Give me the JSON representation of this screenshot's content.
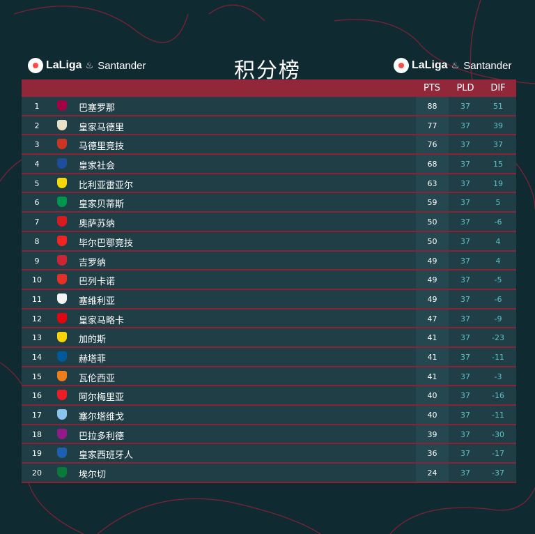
{
  "logos": {
    "left": {
      "brand": "LaLiga",
      "sponsor": "Santander"
    },
    "right": {
      "brand": "LaLiga",
      "sponsor": "Santander"
    }
  },
  "title": "积分榜",
  "headers": {
    "pts": "PTS",
    "pld": "PLD",
    "dif": "DIF"
  },
  "colors": {
    "background": "#0f2a30",
    "header_bar": "#912738",
    "row": "#1f3e46",
    "pts_column": "#25474f",
    "accent_text": "#5ec3c9"
  },
  "rows": [
    {
      "rank": "1",
      "team": "巴塞罗那",
      "pts": "88",
      "pld": "37",
      "dif": "51",
      "crest": "barcelona-crest-icon",
      "color": "#a50044"
    },
    {
      "rank": "2",
      "team": "皇家马德里",
      "pts": "77",
      "pld": "37",
      "dif": "39",
      "crest": "real-madrid-crest-icon",
      "color": "#e8e1c8"
    },
    {
      "rank": "3",
      "team": "马德里竞技",
      "pts": "76",
      "pld": "37",
      "dif": "37",
      "crest": "atletico-madrid-crest-icon",
      "color": "#cb3524"
    },
    {
      "rank": "4",
      "team": "皇家社会",
      "pts": "68",
      "pld": "37",
      "dif": "15",
      "crest": "real-sociedad-crest-icon",
      "color": "#1e4d9b"
    },
    {
      "rank": "5",
      "team": "比利亚雷亚尔",
      "pts": "63",
      "pld": "37",
      "dif": "19",
      "crest": "villarreal-crest-icon",
      "color": "#f5d90a"
    },
    {
      "rank": "6",
      "team": "皇家贝蒂斯",
      "pts": "59",
      "pld": "37",
      "dif": "5",
      "crest": "real-betis-crest-icon",
      "color": "#00954c"
    },
    {
      "rank": "7",
      "team": "奥萨苏纳",
      "pts": "50",
      "pld": "37",
      "dif": "-6",
      "crest": "osasuna-crest-icon",
      "color": "#d91a21"
    },
    {
      "rank": "8",
      "team": "毕尔巴鄂竞技",
      "pts": "50",
      "pld": "37",
      "dif": "4",
      "crest": "athletic-bilbao-crest-icon",
      "color": "#ee2523"
    },
    {
      "rank": "9",
      "team": "吉罗纳",
      "pts": "49",
      "pld": "37",
      "dif": "4",
      "crest": "girona-crest-icon",
      "color": "#cd2534"
    },
    {
      "rank": "10",
      "team": "巴列卡诺",
      "pts": "49",
      "pld": "37",
      "dif": "-5",
      "crest": "rayo-vallecano-crest-icon",
      "color": "#e53027"
    },
    {
      "rank": "11",
      "team": "塞维利亚",
      "pts": "49",
      "pld": "37",
      "dif": "-6",
      "crest": "sevilla-crest-icon",
      "color": "#f4f4f4"
    },
    {
      "rank": "12",
      "team": "皇家马略卡",
      "pts": "47",
      "pld": "37",
      "dif": "-9",
      "crest": "mallorca-crest-icon",
      "color": "#e20613"
    },
    {
      "rank": "13",
      "team": "加的斯",
      "pts": "41",
      "pld": "37",
      "dif": "-23",
      "crest": "cadiz-crest-icon",
      "color": "#f7d308"
    },
    {
      "rank": "14",
      "team": "赫塔菲",
      "pts": "41",
      "pld": "37",
      "dif": "-11",
      "crest": "getafe-crest-icon",
      "color": "#005999"
    },
    {
      "rank": "15",
      "team": "瓦伦西亚",
      "pts": "41",
      "pld": "37",
      "dif": "-3",
      "crest": "valencia-crest-icon",
      "color": "#ee7d1a"
    },
    {
      "rank": "16",
      "team": "阿尔梅里亚",
      "pts": "40",
      "pld": "37",
      "dif": "-16",
      "crest": "almeria-crest-icon",
      "color": "#ee1c25"
    },
    {
      "rank": "17",
      "team": "塞尔塔维戈",
      "pts": "40",
      "pld": "37",
      "dif": "-11",
      "crest": "celta-vigo-crest-icon",
      "color": "#8ac3ee"
    },
    {
      "rank": "18",
      "team": "巴拉多利德",
      "pts": "39",
      "pld": "37",
      "dif": "-30",
      "crest": "valladolid-crest-icon",
      "color": "#921b88"
    },
    {
      "rank": "19",
      "team": "皇家西班牙人",
      "pts": "36",
      "pld": "37",
      "dif": "-17",
      "crest": "espanyol-crest-icon",
      "color": "#1f5fb0"
    },
    {
      "rank": "20",
      "team": "埃尔切",
      "pts": "24",
      "pld": "37",
      "dif": "-37",
      "crest": "elche-crest-icon",
      "color": "#0a7a3a"
    }
  ]
}
